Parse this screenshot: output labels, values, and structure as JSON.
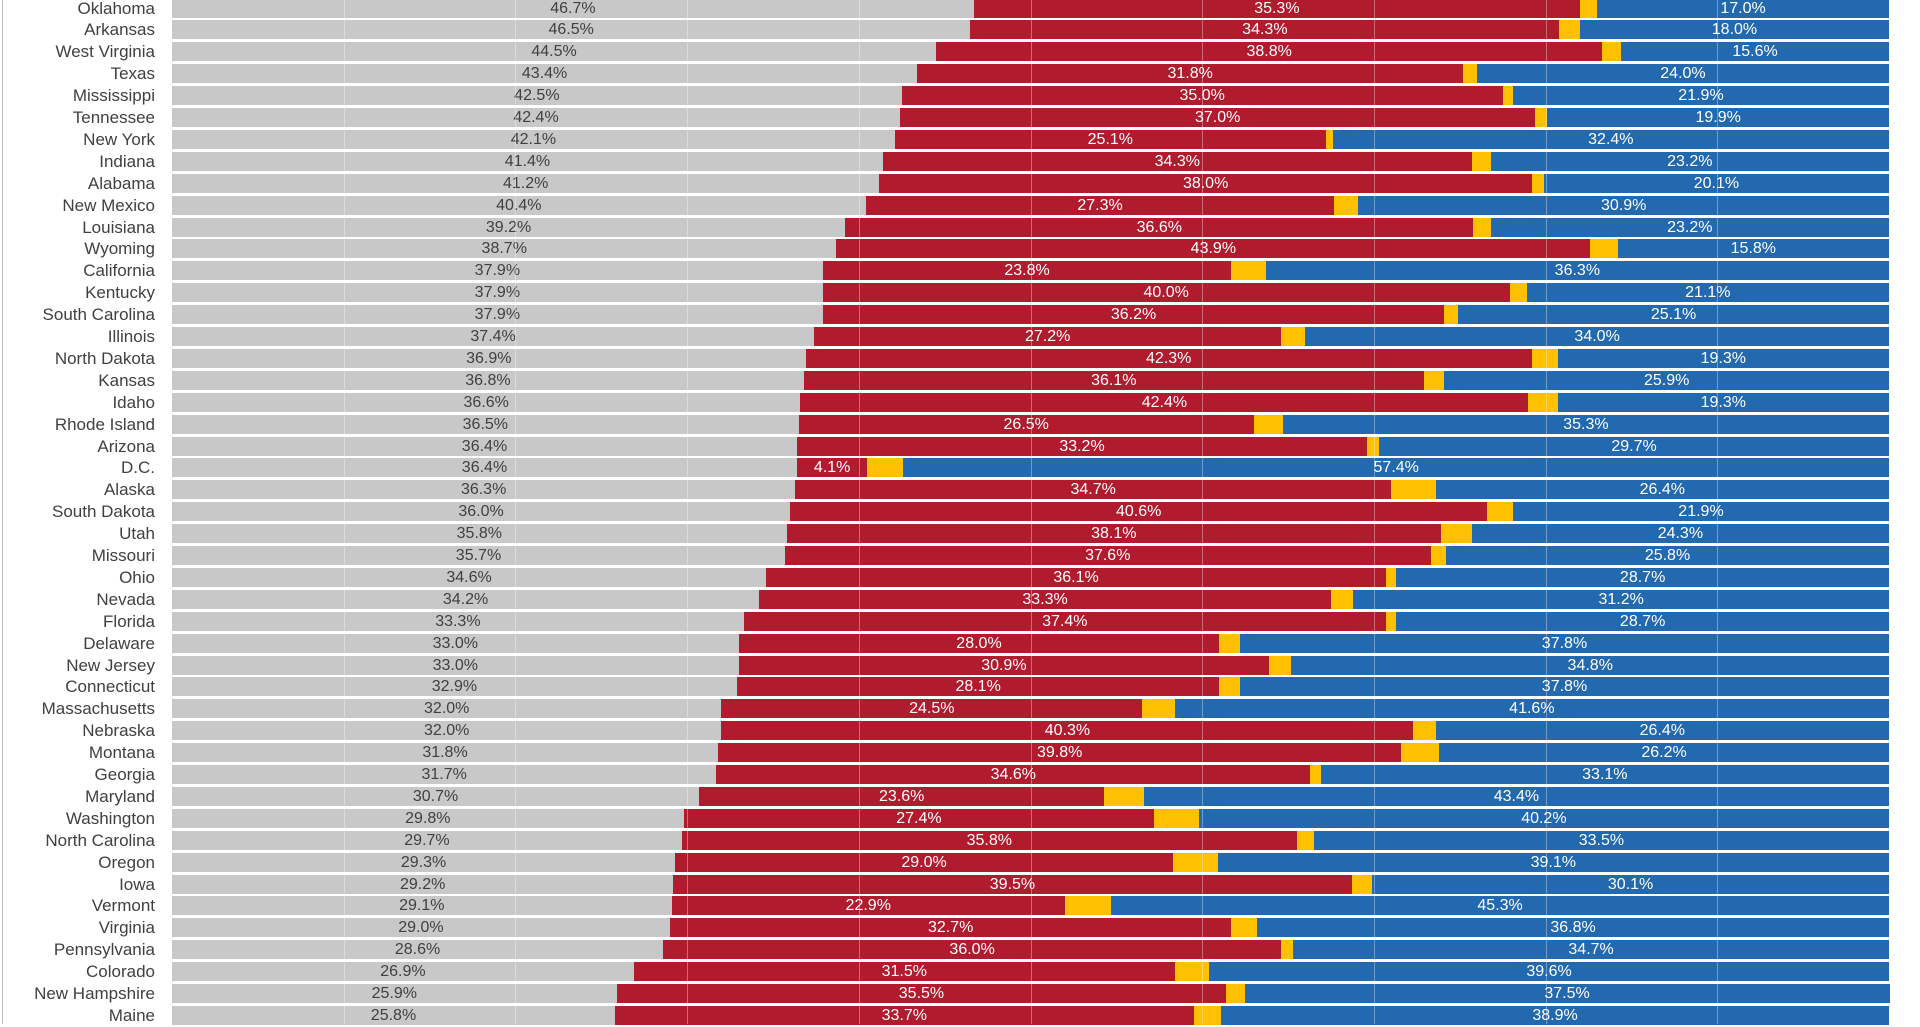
{
  "chart_data": {
    "type": "bar",
    "orientation": "horizontal",
    "stacked": true,
    "normalized_to": 100,
    "xlim": [
      0,
      100
    ],
    "grid": true,
    "colors": {
      "gray": "#c8c8c8",
      "red": "#b01c2e",
      "yellow": "#ffc000",
      "blue": "#2369b0"
    },
    "categories": [
      "Oklahoma",
      "Arkansas",
      "West Virginia",
      "Texas",
      "Mississippi",
      "Tennessee",
      "New York",
      "Indiana",
      "Alabama",
      "New Mexico",
      "Louisiana",
      "Wyoming",
      "California",
      "Kentucky",
      "South Carolina",
      "Illinois",
      "North Dakota",
      "Kansas",
      "Idaho",
      "Rhode Island",
      "Arizona",
      "D.C.",
      "Alaska",
      "South Dakota",
      "Utah",
      "Missouri",
      "Ohio",
      "Nevada",
      "Florida",
      "Delaware",
      "New Jersey",
      "Connecticut",
      "Massachusetts",
      "Nebraska",
      "Montana",
      "Georgia",
      "Maryland",
      "Washington",
      "North Carolina",
      "Oregon",
      "Iowa",
      "Vermont",
      "Virginia",
      "Pennsylvania",
      "Colorado",
      "New Hampshire",
      "Maine"
    ],
    "series": [
      {
        "color": "#c8c8c8",
        "values": [
          46.7,
          46.5,
          44.5,
          43.4,
          42.5,
          42.4,
          42.1,
          41.4,
          41.2,
          40.4,
          39.2,
          38.7,
          37.9,
          37.9,
          37.9,
          37.4,
          36.9,
          36.8,
          36.6,
          36.5,
          36.4,
          36.4,
          36.3,
          36.0,
          35.8,
          35.7,
          34.6,
          34.2,
          33.3,
          33.0,
          33.0,
          32.9,
          32.0,
          32.0,
          31.8,
          31.7,
          30.7,
          29.8,
          29.7,
          29.3,
          29.2,
          29.1,
          29.0,
          28.6,
          26.9,
          25.9,
          25.8
        ]
      },
      {
        "color": "#b01c2e",
        "values": [
          35.3,
          34.3,
          38.8,
          31.8,
          35.0,
          37.0,
          25.1,
          34.3,
          38.0,
          27.3,
          36.6,
          43.9,
          23.8,
          40.0,
          36.2,
          27.2,
          42.3,
          36.1,
          42.4,
          26.5,
          33.2,
          4.1,
          34.7,
          40.6,
          38.1,
          37.6,
          36.1,
          33.3,
          37.4,
          28.0,
          30.9,
          28.1,
          24.5,
          40.3,
          39.8,
          34.6,
          23.6,
          27.4,
          35.8,
          29.0,
          39.5,
          22.9,
          32.7,
          36.0,
          31.5,
          35.5,
          33.7
        ]
      },
      {
        "color": "#ffc000",
        "values": [
          1.0,
          1.2,
          1.1,
          0.8,
          0.6,
          0.7,
          0.4,
          1.1,
          0.7,
          1.4,
          1.0,
          1.6,
          2.0,
          1.0,
          0.8,
          1.4,
          1.5,
          1.2,
          1.7,
          1.7,
          0.7,
          2.1,
          2.6,
          1.5,
          1.8,
          0.9,
          0.6,
          1.3,
          0.6,
          1.2,
          1.3,
          1.2,
          1.9,
          1.3,
          2.2,
          0.6,
          2.3,
          2.6,
          1.0,
          2.6,
          1.2,
          2.7,
          1.5,
          0.7,
          2.0,
          1.1,
          1.6
        ]
      },
      {
        "color": "#2369b0",
        "values": [
          17.0,
          18.0,
          15.6,
          24.0,
          21.9,
          19.9,
          32.4,
          23.2,
          20.1,
          30.9,
          23.2,
          15.8,
          36.3,
          21.1,
          25.1,
          34.0,
          19.3,
          25.9,
          19.3,
          35.3,
          29.7,
          57.4,
          26.4,
          21.9,
          24.3,
          25.8,
          28.7,
          31.2,
          28.7,
          37.8,
          34.8,
          37.8,
          41.6,
          26.4,
          26.2,
          33.1,
          43.4,
          40.2,
          33.5,
          39.1,
          30.1,
          45.3,
          36.8,
          34.7,
          39.6,
          37.5,
          38.9
        ]
      }
    ],
    "labels": {
      "gray": true,
      "red": true,
      "yellow": false,
      "blue": true,
      "suffix": "%"
    }
  }
}
